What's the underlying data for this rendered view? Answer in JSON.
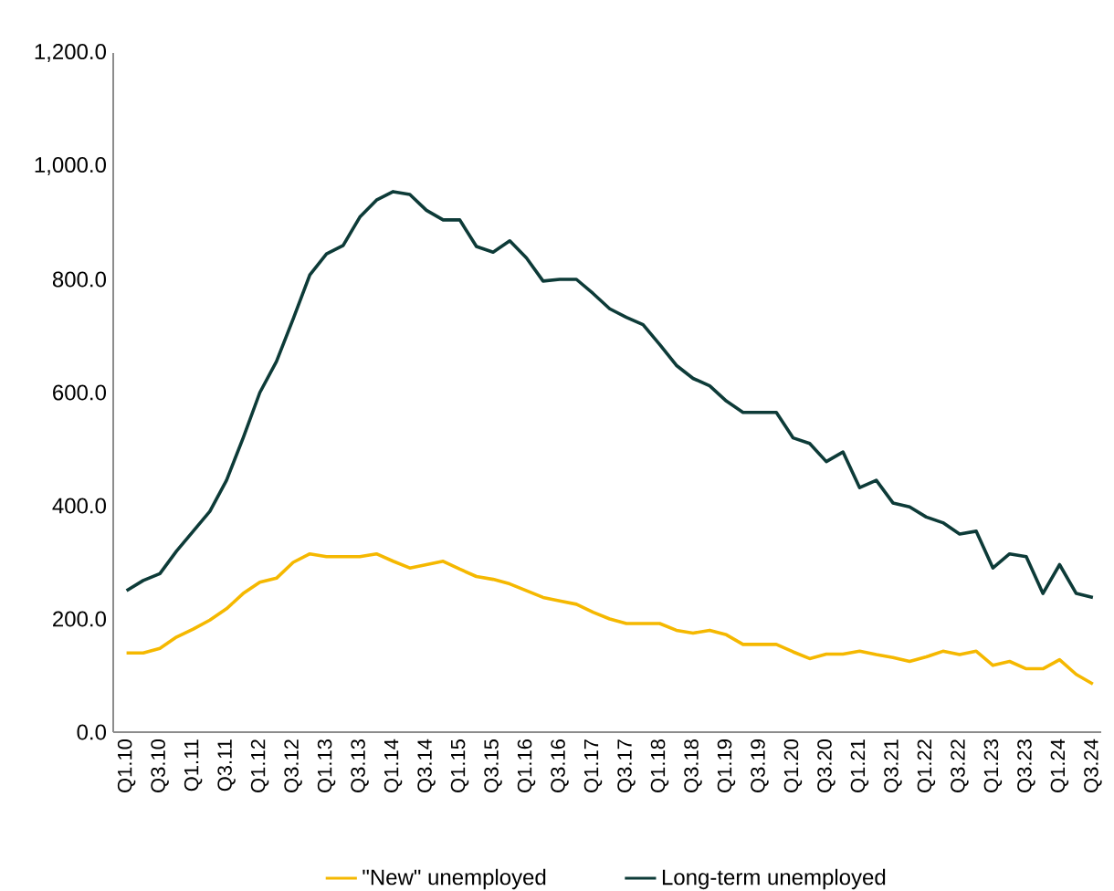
{
  "chart_data": {
    "type": "line",
    "categories": [
      "Q1.10",
      null,
      "Q3.10",
      null,
      "Q1.11",
      null,
      "Q3.11",
      null,
      "Q1.12",
      null,
      "Q3.12",
      null,
      "Q1.13",
      null,
      "Q3.13",
      null,
      "Q1.14",
      null,
      "Q3.14",
      null,
      "Q1.15",
      null,
      "Q3.15",
      null,
      "Q1.16",
      null,
      "Q3.16",
      null,
      "Q1.17",
      null,
      "Q3.17",
      null,
      "Q1.18",
      null,
      "Q3.18",
      null,
      "Q1.19",
      null,
      "Q3.19",
      null,
      "Q1.20",
      null,
      "Q3.20",
      null,
      "Q1.21",
      null,
      "Q3.21",
      null,
      "Q1.22",
      null,
      "Q3.22",
      null,
      "Q1.23",
      null,
      "Q3.23",
      null,
      "Q1.24",
      null,
      "Q3.24"
    ],
    "series": [
      {
        "name": "\"New\" unemployed",
        "color": "#f5b800",
        "values": [
          140,
          140,
          148,
          168,
          182,
          198,
          218,
          245,
          265,
          272,
          300,
          315,
          310,
          310,
          310,
          315,
          302,
          290,
          296,
          302,
          288,
          275,
          270,
          262,
          250,
          238,
          232,
          226,
          212,
          200,
          192,
          192,
          192,
          180,
          175,
          180,
          172,
          155,
          155,
          155,
          142,
          130,
          138,
          138,
          143,
          137,
          132,
          125,
          133,
          143,
          137,
          143,
          118,
          125,
          112,
          112,
          128,
          102,
          85
        ]
      },
      {
        "name": "Long-term unemployed",
        "color": "#0d3b38",
        "values": [
          250,
          268,
          280,
          320,
          355,
          390,
          445,
          520,
          600,
          655,
          730,
          808,
          845,
          860,
          910,
          940,
          955,
          950,
          922,
          905,
          905,
          858,
          848,
          868,
          838,
          797,
          800,
          800,
          775,
          748,
          733,
          720,
          685,
          648,
          625,
          612,
          585,
          565,
          565,
          565,
          520,
          510,
          478,
          495,
          432,
          445,
          405,
          398,
          380,
          370,
          350,
          355,
          290,
          315,
          310,
          245,
          296,
          245,
          238
        ]
      }
    ],
    "ylim": [
      0,
      1200
    ],
    "yticks": [
      {
        "value": 0,
        "label": "0.0"
      },
      {
        "value": 200,
        "label": "200.0"
      },
      {
        "value": 400,
        "label": "400.0"
      },
      {
        "value": 600,
        "label": "600.0"
      },
      {
        "value": 800,
        "label": "800.0"
      },
      {
        "value": 1000,
        "label": "1,000.0"
      },
      {
        "value": 1200,
        "label": "1,200.0"
      }
    ],
    "legend": "bottom"
  }
}
